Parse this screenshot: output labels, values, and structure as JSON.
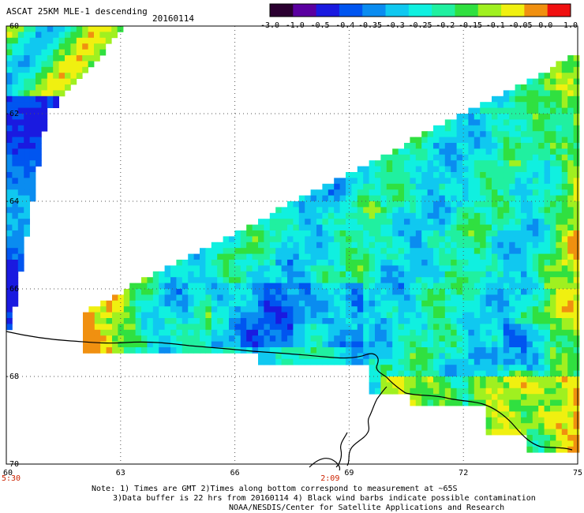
{
  "header": {
    "title": "ASCAT 25KM MLE-1 descending",
    "date": "20160114"
  },
  "colorbar": {
    "labels": [
      "-3.0",
      "-1.0",
      "-0.5",
      "-0.4",
      "-0.35",
      "-0.3",
      "-0.25",
      "-0.2",
      "-0.15",
      "-0.1",
      "-0.05",
      "0.0",
      "1.0"
    ],
    "colors": [
      "#2a0030",
      "#5a00a0",
      "#1a1ae0",
      "#0055f0",
      "#0a8cf0",
      "#10c8f0",
      "#10f0e0",
      "#20f0a0",
      "#30e040",
      "#a0f020",
      "#f0f010",
      "#f09010",
      "#f01010"
    ]
  },
  "axes": {
    "lon_ticks": [
      "60",
      "63",
      "66",
      "69",
      "72",
      "75"
    ],
    "lat_ticks": [
      "-60",
      "-62",
      "-64",
      "-66",
      "-68",
      "-70"
    ],
    "time_labels": [
      {
        "text": "5:30",
        "lon": 60
      },
      {
        "text": "2:09",
        "lon": 68.5
      }
    ]
  },
  "notes": {
    "line1": "Note: 1) Times are GMT 2)Times along bottom correspond to measurement at ~65S",
    "line2": "3)Data buffer is 22 hrs from 20160114 4) Black wind barbs indicate possible contamination",
    "line3": "NOAA/NESDIS/Center for Satellite Applications and Research"
  }
}
